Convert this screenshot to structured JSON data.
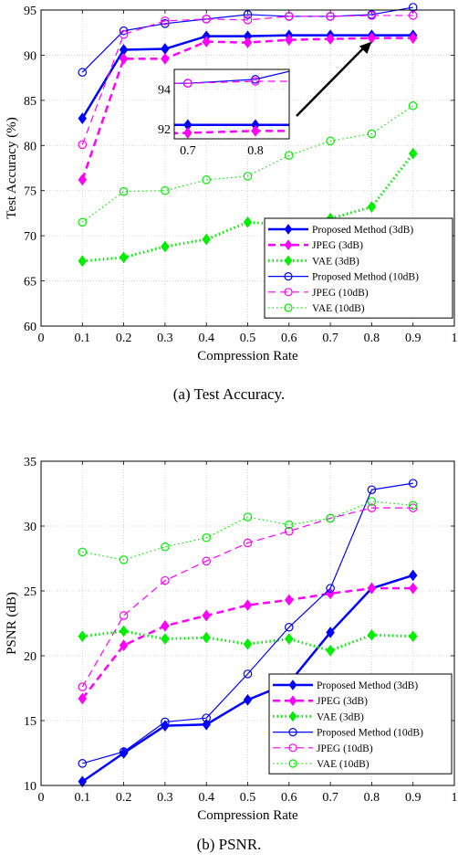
{
  "captions": {
    "a": "(a)  Test Accuracy.",
    "b": "(b)  PSNR."
  },
  "chart_data": [
    {
      "type": "line",
      "xlabel": "Compression Rate",
      "ylabel": "Test Accuracy (%)",
      "xlim": [
        0,
        1
      ],
      "ylim": [
        60,
        95
      ],
      "xticks": [
        0,
        0.1,
        0.2,
        0.3,
        0.4,
        0.5,
        0.6,
        0.7,
        0.8,
        0.9,
        1
      ],
      "xtick_labels": [
        "0",
        "0.1",
        "0.2",
        "0.3",
        "0.4",
        "0.5",
        "0.6",
        "0.7",
        "0.8",
        "0.9",
        "1"
      ],
      "yticks": [
        60,
        65,
        70,
        75,
        80,
        85,
        90,
        95
      ],
      "ytick_labels": [
        "60",
        "65",
        "70",
        "75",
        "80",
        "85",
        "90",
        "95"
      ],
      "grid": true,
      "legend_position": "bottom-right",
      "x": [
        0.1,
        0.2,
        0.3,
        0.4,
        0.5,
        0.6,
        0.7,
        0.8,
        0.9
      ],
      "series": [
        {
          "name": "Proposed Method (3dB)",
          "color": "#0000ff",
          "style": "solid",
          "width": 2.5,
          "marker": "diamond",
          "filled": true,
          "values": [
            83.0,
            90.6,
            90.7,
            92.1,
            92.1,
            92.2,
            92.2,
            92.2,
            92.2
          ]
        },
        {
          "name": "JPEG (3dB)",
          "color": "#ff00ff",
          "style": "dashed",
          "width": 2.5,
          "marker": "diamond",
          "filled": true,
          "values": [
            76.2,
            89.6,
            89.6,
            91.5,
            91.4,
            91.7,
            91.8,
            91.9,
            91.9
          ]
        },
        {
          "name": "VAE (3dB)",
          "color": "#00ee00",
          "style": "dotted",
          "width": 3,
          "marker": "diamond",
          "filled": true,
          "values": [
            67.2,
            67.6,
            68.8,
            69.6,
            71.5,
            71.2,
            71.9,
            73.2,
            79.1
          ]
        },
        {
          "name": "Proposed Method (10dB)",
          "color": "#0000ff",
          "style": "solid",
          "width": 1.2,
          "marker": "circle",
          "filled": false,
          "values": [
            88.1,
            92.7,
            93.5,
            94.0,
            94.5,
            94.3,
            94.3,
            94.5,
            95.3
          ]
        },
        {
          "name": "JPEG (10dB)",
          "color": "#ff00ff",
          "style": "dashed",
          "width": 1.2,
          "marker": "circle",
          "filled": false,
          "values": [
            80.1,
            92.3,
            93.8,
            94.0,
            93.9,
            94.3,
            94.3,
            94.4,
            94.4
          ]
        },
        {
          "name": "VAE (10dB)",
          "color": "#00ee00",
          "style": "dotted",
          "width": 1.2,
          "marker": "circle",
          "filled": false,
          "values": [
            71.5,
            74.9,
            75.0,
            76.2,
            76.6,
            78.9,
            80.5,
            81.3,
            84.4
          ]
        }
      ],
      "inset": {
        "xlim": [
          0.68,
          0.85
        ],
        "ylim": [
          91.5,
          95
        ],
        "xticks": [
          0.7,
          0.8
        ],
        "xtick_labels": [
          "0.7",
          "0.8"
        ],
        "yticks": [
          92,
          94
        ],
        "ytick_labels": [
          "92",
          "94"
        ]
      }
    },
    {
      "type": "line",
      "xlabel": "Compression Rate",
      "ylabel": "PSNR (dB)",
      "xlim": [
        0,
        1
      ],
      "ylim": [
        10,
        35
      ],
      "xticks": [
        0,
        0.1,
        0.2,
        0.3,
        0.4,
        0.5,
        0.6,
        0.7,
        0.8,
        0.9,
        1
      ],
      "xtick_labels": [
        "0",
        "0.1",
        "0.2",
        "0.3",
        "0.4",
        "0.5",
        "0.6",
        "0.7",
        "0.8",
        "0.9",
        "1"
      ],
      "yticks": [
        10,
        15,
        20,
        25,
        30,
        35
      ],
      "ytick_labels": [
        "10",
        "15",
        "20",
        "25",
        "30",
        "35"
      ],
      "grid": true,
      "legend_position": "bottom-right",
      "x": [
        0.1,
        0.2,
        0.3,
        0.4,
        0.5,
        0.6,
        0.7,
        0.8,
        0.9
      ],
      "series": [
        {
          "name": "Proposed Method (3dB)",
          "color": "#0000ff",
          "style": "solid",
          "width": 2.5,
          "marker": "diamond",
          "filled": true,
          "values": [
            10.3,
            12.5,
            14.6,
            14.7,
            16.6,
            17.9,
            21.8,
            25.2,
            26.2
          ]
        },
        {
          "name": "JPEG (3dB)",
          "color": "#ff00ff",
          "style": "dashed",
          "width": 2.5,
          "marker": "diamond",
          "filled": true,
          "values": [
            16.7,
            20.8,
            22.3,
            23.1,
            23.9,
            24.3,
            24.8,
            25.2,
            25.2
          ]
        },
        {
          "name": "VAE (3dB)",
          "color": "#00ee00",
          "style": "dotted",
          "width": 3,
          "marker": "diamond",
          "filled": true,
          "values": [
            21.5,
            21.9,
            21.3,
            21.4,
            20.9,
            21.3,
            20.4,
            21.6,
            21.5
          ]
        },
        {
          "name": "Proposed Method (10dB)",
          "color": "#0000ff",
          "style": "solid",
          "width": 1.2,
          "marker": "circle",
          "filled": false,
          "values": [
            11.7,
            12.6,
            14.9,
            15.2,
            18.6,
            22.2,
            25.2,
            32.8,
            33.3
          ]
        },
        {
          "name": "JPEG (10dB)",
          "color": "#ff00ff",
          "style": "dashed",
          "width": 1.2,
          "marker": "circle",
          "filled": false,
          "values": [
            17.6,
            23.1,
            25.8,
            27.3,
            28.7,
            29.6,
            30.6,
            31.4,
            31.4
          ]
        },
        {
          "name": "VAE (10dB)",
          "color": "#00ee00",
          "style": "dotted",
          "width": 1.2,
          "marker": "circle",
          "filled": false,
          "values": [
            28.0,
            27.4,
            28.4,
            29.1,
            30.7,
            30.1,
            30.6,
            31.9,
            31.6
          ]
        }
      ]
    }
  ]
}
